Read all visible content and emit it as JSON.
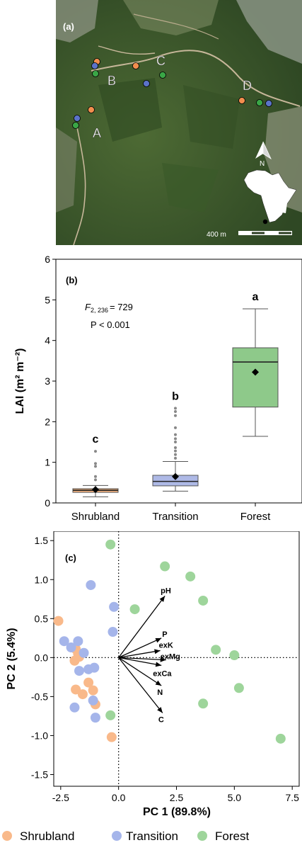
{
  "panel_a": {
    "label": "(a)",
    "sites": [
      "A",
      "B",
      "C",
      "D"
    ],
    "north": "N",
    "scale_label": "400 m",
    "colors": {
      "shrubland": "#f28e4e",
      "transition": "#5b73c9",
      "forest": "#3aa646"
    },
    "icon": "africa-map-icon"
  },
  "chart_data": [
    {
      "type": "box",
      "panel_label": "(b)",
      "ylabel": "LAI (m² m⁻²)",
      "ylim": [
        0,
        6
      ],
      "yticks": [
        0,
        1,
        2,
        3,
        4,
        5,
        6
      ],
      "categories": [
        "Shrubland",
        "Transition",
        "Forest"
      ],
      "stat": {
        "f_symbol": "F",
        "f_sub": "2, 236",
        "f_value": "= 729",
        "p_line": "P < 0.001"
      },
      "boxes": [
        {
          "name": "Shrubland",
          "letter": "c",
          "q1": 0.26,
          "median": 0.31,
          "q3": 0.35,
          "mean": 0.33,
          "whisker_low": 0.15,
          "whisker_high": 0.43,
          "outliers": [
            0.57,
            0.65,
            0.9,
            0.97,
            1.27
          ],
          "color": "#f5b27f"
        },
        {
          "name": "Transition",
          "letter": "b",
          "q1": 0.42,
          "median": 0.53,
          "q3": 0.68,
          "mean": 0.65,
          "whisker_low": 0.29,
          "whisker_high": 1.02,
          "outliers": [
            1.1,
            1.19,
            1.28,
            1.36,
            1.5,
            1.58,
            1.68,
            1.85,
            2.15,
            2.25,
            2.33
          ],
          "color": "#aeb9e6"
        },
        {
          "name": "Forest",
          "letter": "a",
          "q1": 2.36,
          "median": 3.47,
          "q3": 3.82,
          "mean": 3.22,
          "whisker_low": 1.64,
          "whisker_high": 4.78,
          "outliers": [],
          "color": "#8ec98a"
        }
      ]
    },
    {
      "type": "scatter",
      "panel_label": "(c)",
      "xlabel": "PC 1 (89.8%)",
      "ylabel": "PC 2 (5.4%)",
      "xlim": [
        -2.8,
        7.8
      ],
      "ylim": [
        -1.65,
        1.62
      ],
      "xticks": [
        "-2.5",
        "0.0",
        "2.5",
        "5.0",
        "7.5"
      ],
      "yticks": [
        "1.5",
        "1.0",
        "0.5",
        "0.0",
        "-0.5",
        "-1.0",
        "-1.5"
      ],
      "series": [
        {
          "name": "Shrubland",
          "color": "#f9b98a",
          "points": [
            [
              -2.6,
              0.47
            ],
            [
              -1.85,
              0.11
            ],
            [
              -1.75,
              0.05
            ],
            [
              -1.7,
              0.01
            ],
            [
              -1.9,
              -0.04
            ],
            [
              -1.3,
              -0.32
            ],
            [
              -1.85,
              -0.41
            ],
            [
              -1.55,
              -0.47
            ],
            [
              -1.1,
              -0.42
            ],
            [
              -1.0,
              -0.6
            ],
            [
              -0.3,
              -1.02
            ]
          ]
        },
        {
          "name": "Transition",
          "color": "#a5b5ea",
          "points": [
            [
              -1.2,
              0.93
            ],
            [
              -0.2,
              0.65
            ],
            [
              -0.25,
              0.33
            ],
            [
              -2.35,
              0.21
            ],
            [
              -2.05,
              0.13
            ],
            [
              -1.75,
              0.21
            ],
            [
              -1.5,
              0.06
            ],
            [
              -1.7,
              -0.17
            ],
            [
              -1.3,
              -0.15
            ],
            [
              -1.05,
              -0.13
            ],
            [
              -1.1,
              -0.55
            ],
            [
              -1.9,
              -0.64
            ],
            [
              -1.0,
              -0.77
            ]
          ]
        },
        {
          "name": "Forest",
          "color": "#9ed59b",
          "points": [
            [
              -0.35,
              1.45
            ],
            [
              2.0,
              1.17
            ],
            [
              3.1,
              1.04
            ],
            [
              3.65,
              0.73
            ],
            [
              0.7,
              0.62
            ],
            [
              4.2,
              0.1
            ],
            [
              5.0,
              0.03
            ],
            [
              5.2,
              -0.39
            ],
            [
              3.65,
              -0.59
            ],
            [
              -0.35,
              -0.74
            ],
            [
              7.0,
              -1.04
            ]
          ]
        }
      ],
      "vectors": [
        {
          "label": "pH",
          "x": 2.0,
          "y": 0.79
        },
        {
          "label": "P",
          "x": 1.85,
          "y": 0.25
        },
        {
          "label": "exK",
          "x": 1.8,
          "y": 0.09
        },
        {
          "label": "exMg",
          "x": 2.05,
          "y": -0.03
        },
        {
          "label": "exCa",
          "x": 1.85,
          "y": -0.1
        },
        {
          "label": "N",
          "x": 1.85,
          "y": -0.36
        },
        {
          "label": "C",
          "x": 1.9,
          "y": -0.71
        }
      ]
    }
  ],
  "legend": [
    "Shrubland",
    "Transition",
    "Forest"
  ]
}
